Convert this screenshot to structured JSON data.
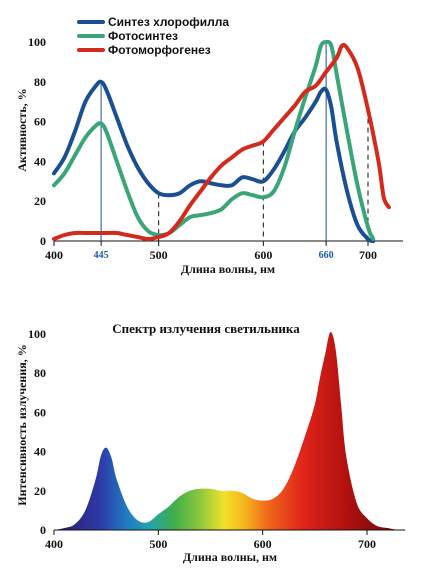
{
  "chart_data": [
    {
      "type": "line",
      "xlabel": "Длина волны, нм",
      "ylabel": "Активность, %",
      "xlim": [
        400,
        720
      ],
      "ylim": [
        0,
        110
      ],
      "x_ticks": [
        "400",
        "500",
        "600",
        "700"
      ],
      "x_ticks_highlight": [
        "445",
        "660"
      ],
      "y_ticks": [
        "0",
        "20",
        "40",
        "60",
        "80",
        "100"
      ],
      "series": [
        {
          "name": "Синтез хлорофилла",
          "color": "#1b4f93",
          "points": [
            [
              400,
              34
            ],
            [
              410,
              42
            ],
            [
              420,
              55
            ],
            [
              430,
              70
            ],
            [
              440,
              78
            ],
            [
              445,
              80
            ],
            [
              450,
              76
            ],
            [
              460,
              62
            ],
            [
              470,
              48
            ],
            [
              480,
              37
            ],
            [
              490,
              29
            ],
            [
              500,
              24
            ],
            [
              510,
              23
            ],
            [
              520,
              24
            ],
            [
              530,
              28
            ],
            [
              540,
              30
            ],
            [
              550,
              29
            ],
            [
              560,
              28
            ],
            [
              570,
              28
            ],
            [
              580,
              32
            ],
            [
              590,
              31
            ],
            [
              600,
              30
            ],
            [
              610,
              36
            ],
            [
              620,
              45
            ],
            [
              630,
              55
            ],
            [
              640,
              62
            ],
            [
              650,
              70
            ],
            [
              655,
              75
            ],
            [
              660,
              76
            ],
            [
              665,
              67
            ],
            [
              670,
              50
            ],
            [
              680,
              25
            ],
            [
              690,
              8
            ],
            [
              700,
              1
            ],
            [
              705,
              0
            ]
          ]
        },
        {
          "name": "Фотосинтез",
          "color": "#3aa578",
          "points": [
            [
              400,
              28
            ],
            [
              410,
              34
            ],
            [
              420,
              43
            ],
            [
              430,
              52
            ],
            [
              440,
              58
            ],
            [
              445,
              59
            ],
            [
              450,
              55
            ],
            [
              460,
              40
            ],
            [
              470,
              25
            ],
            [
              480,
              12
            ],
            [
              490,
              5
            ],
            [
              500,
              3
            ],
            [
              510,
              4
            ],
            [
              520,
              8
            ],
            [
              530,
              12
            ],
            [
              540,
              13
            ],
            [
              550,
              14
            ],
            [
              560,
              16
            ],
            [
              570,
              21
            ],
            [
              580,
              24
            ],
            [
              590,
              23
            ],
            [
              600,
              22
            ],
            [
              610,
              25
            ],
            [
              620,
              37
            ],
            [
              630,
              55
            ],
            [
              640,
              72
            ],
            [
              650,
              88
            ],
            [
              655,
              98
            ],
            [
              660,
              100
            ],
            [
              665,
              98
            ],
            [
              670,
              84
            ],
            [
              680,
              55
            ],
            [
              690,
              28
            ],
            [
              700,
              7
            ],
            [
              705,
              1
            ]
          ]
        },
        {
          "name": "Фотоморфогенез",
          "color": "#d42a1e",
          "points": [
            [
              400,
              1
            ],
            [
              410,
              3
            ],
            [
              420,
              4
            ],
            [
              430,
              4
            ],
            [
              440,
              4
            ],
            [
              450,
              4
            ],
            [
              460,
              4
            ],
            [
              470,
              3
            ],
            [
              480,
              2
            ],
            [
              490,
              1
            ],
            [
              500,
              2
            ],
            [
              510,
              4
            ],
            [
              520,
              10
            ],
            [
              530,
              18
            ],
            [
              540,
              25
            ],
            [
              550,
              32
            ],
            [
              560,
              38
            ],
            [
              570,
              42
            ],
            [
              580,
              46
            ],
            [
              590,
              48
            ],
            [
              600,
              50
            ],
            [
              610,
              56
            ],
            [
              620,
              62
            ],
            [
              630,
              68
            ],
            [
              640,
              75
            ],
            [
              650,
              78
            ],
            [
              660,
              85
            ],
            [
              670,
              92
            ],
            [
              675,
              98
            ],
            [
              680,
              97
            ],
            [
              690,
              87
            ],
            [
              700,
              66
            ],
            [
              710,
              40
            ],
            [
              715,
              22
            ],
            [
              720,
              17
            ]
          ]
        }
      ],
      "legend": "top-left"
    },
    {
      "type": "area",
      "title": "Спектр излучения светильника",
      "xlabel": "Длина волны, нм",
      "ylabel": "Интенсивность излучения, %",
      "xlim": [
        400,
        740
      ],
      "ylim": [
        0,
        110
      ],
      "x_ticks": [
        "400",
        "500",
        "600",
        "700"
      ],
      "y_ticks": [
        "0",
        "20",
        "40",
        "60",
        "80",
        "100"
      ],
      "series": [
        {
          "points": [
            [
              400,
              0
            ],
            [
              410,
              1
            ],
            [
              420,
              3
            ],
            [
              430,
              10
            ],
            [
              440,
              26
            ],
            [
              445,
              38
            ],
            [
              450,
              42
            ],
            [
              455,
              37
            ],
            [
              460,
              26
            ],
            [
              470,
              12
            ],
            [
              480,
              5
            ],
            [
              490,
              4
            ],
            [
              500,
              8
            ],
            [
              510,
              12
            ],
            [
              520,
              17
            ],
            [
              530,
              20
            ],
            [
              540,
              21
            ],
            [
              550,
              21
            ],
            [
              560,
              20
            ],
            [
              570,
              20
            ],
            [
              580,
              19
            ],
            [
              590,
              16
            ],
            [
              600,
              15
            ],
            [
              610,
              16
            ],
            [
              620,
              21
            ],
            [
              630,
              32
            ],
            [
              640,
              47
            ],
            [
              650,
              64
            ],
            [
              655,
              78
            ],
            [
              660,
              90
            ],
            [
              665,
              101
            ],
            [
              670,
              92
            ],
            [
              675,
              65
            ],
            [
              680,
              38
            ],
            [
              690,
              14
            ],
            [
              700,
              6
            ],
            [
              710,
              2
            ],
            [
              720,
              1
            ],
            [
              730,
              0
            ],
            [
              740,
              0
            ]
          ]
        }
      ]
    }
  ]
}
